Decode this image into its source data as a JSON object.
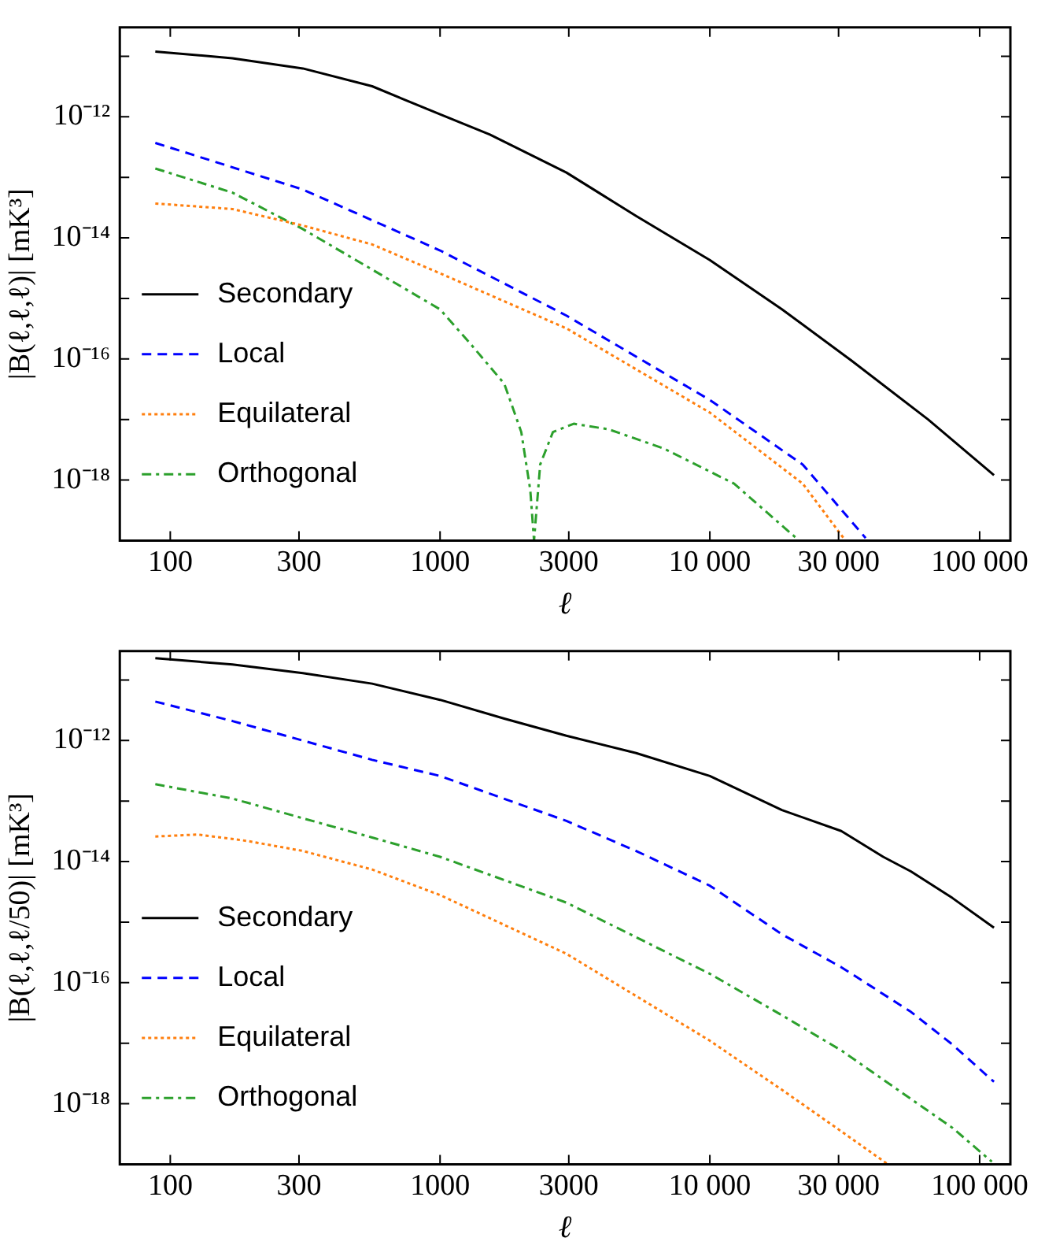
{
  "chart_data": [
    {
      "type": "line",
      "xlabel": "ℓ",
      "ylabel": "|B(ℓ,ℓ,ℓ)| [mK³]",
      "log": "xy",
      "grid": false,
      "legend": "left",
      "marker": "none",
      "xlim": [
        65,
        130000
      ],
      "ylim": [
        1e-19,
        3e-11
      ],
      "xticks": [
        100,
        300,
        1000,
        3000,
        {
          "value": 10000,
          "label": "10 000"
        },
        {
          "value": 30000,
          "label": "30 000"
        },
        {
          "value": 100000,
          "label": "100 000"
        }
      ],
      "yticks": [
        {
          "value": 1e-11,
          "label": null
        },
        {
          "value": 1e-12,
          "label": "10⁻¹²"
        },
        {
          "value": 1e-13,
          "label": null
        },
        {
          "value": 1e-14,
          "label": "10⁻¹⁴"
        },
        {
          "value": 1e-15,
          "label": null
        },
        {
          "value": 1e-16,
          "label": "10⁻¹⁶"
        },
        {
          "value": 1e-17,
          "label": null
        },
        {
          "value": 1e-18,
          "label": "10⁻¹⁸"
        }
      ],
      "series": [
        {
          "name": "Secondary",
          "color": "#000000",
          "line_style": "solid",
          "x": [
            88,
            170,
            310,
            560,
            1000,
            1530,
            2940,
            5330,
            10000,
            18500,
            33600,
            64400,
            113000
          ],
          "values": [
            1.2e-11,
            9.3e-12,
            6.3e-12,
            3.2e-12,
            1.1e-12,
            5.1e-13,
            1.2e-13,
            2.3e-14,
            4.3e-15,
            6.6e-16,
            9.3e-17,
            1e-17,
            1.2e-18
          ]
        },
        {
          "name": "Local",
          "color": "#0000ff",
          "line_style": "dashed",
          "x": [
            88,
            310,
            1000,
            2940,
            10000,
            22100,
            37800
          ],
          "values": [
            3.7e-13,
            6.3e-14,
            6.2e-15,
            5.2e-16,
            2.1e-17,
            1.8e-18,
            1.1e-19
          ]
        },
        {
          "name": "Equilateral",
          "color": "#ff7f0e",
          "line_style": "dotted",
          "x": [
            88,
            170,
            310,
            560,
            1000,
            2940,
            10000,
            22100,
            31300
          ],
          "values": [
            3.7e-14,
            3e-14,
            1.6e-14,
            7.8e-15,
            2.6e-15,
            3.2e-16,
            1.3e-17,
            8.7e-19,
            1.1e-19
          ]
        },
        {
          "name": "Orthogonal",
          "color": "#2ca02c",
          "line_style": "dashdot",
          "x": [
            88,
            170,
            310,
            560,
            1000,
            1280,
            1730,
            2000,
            2160,
            2230,
            2350,
            2620,
            3130,
            4210,
            6760,
            12300,
            20900
          ],
          "values": [
            1.4e-13,
            5.6e-14,
            1.4e-14,
            3e-15,
            6.6e-16,
            1.9e-16,
            3.9e-17,
            6.2e-18,
            6.8e-19,
            1e-19,
            1.8e-18,
            6.2e-18,
            8.5e-18,
            6.9e-18,
            3.3e-18,
            8.7e-19,
            1.1e-19
          ]
        }
      ]
    },
    {
      "type": "line",
      "xlabel": "ℓ",
      "ylabel": "|B(ℓ,ℓ,ℓ/50)| [mK³]",
      "log": "xy",
      "grid": false,
      "legend": "left",
      "marker": "none",
      "xlim": [
        65,
        130000
      ],
      "ylim": [
        1e-19,
        3e-11
      ],
      "xticks": [
        100,
        300,
        1000,
        3000,
        {
          "value": 10000,
          "label": "10 000"
        },
        {
          "value": 30000,
          "label": "30 000"
        },
        {
          "value": 100000,
          "label": "100 000"
        }
      ],
      "yticks": [
        {
          "value": 1e-11,
          "label": null
        },
        {
          "value": 1e-12,
          "label": "10⁻¹²"
        },
        {
          "value": 1e-13,
          "label": null
        },
        {
          "value": 1e-14,
          "label": "10⁻¹⁴"
        },
        {
          "value": 1e-15,
          "label": null
        },
        {
          "value": 1e-16,
          "label": "10⁻¹⁶"
        },
        {
          "value": 1e-17,
          "label": null
        },
        {
          "value": 1e-18,
          "label": "10⁻¹⁸"
        }
      ],
      "series": [
        {
          "name": "Secondary",
          "color": "#000000",
          "line_style": "solid",
          "x": [
            88,
            170,
            310,
            560,
            1000,
            1730,
            2940,
            5330,
            10000,
            18500,
            30700,
            43900,
            55600,
            79300,
            113000
          ],
          "values": [
            2.3e-11,
            1.8e-11,
            1.3e-11,
            8.7e-12,
            4.7e-12,
            2.3e-12,
            1.2e-12,
            6.2e-13,
            2.6e-13,
            7.1e-14,
            3.2e-14,
            1.2e-14,
            6.9e-15,
            2.5e-15,
            8.1e-16
          ]
        },
        {
          "name": "Local",
          "color": "#0000ff",
          "line_style": "dashed",
          "x": [
            88,
            170,
            310,
            560,
            1000,
            2940,
            5330,
            10000,
            18500,
            30700,
            55600,
            79300,
            113000
          ],
          "values": [
            4.4e-12,
            2.1e-12,
            1e-12,
            4.8e-13,
            2.6e-13,
            4.7e-14,
            1.5e-14,
            4e-15,
            6.3e-16,
            1.8e-16,
            3.3e-17,
            9.5e-18,
            2.3e-18
          ]
        },
        {
          "name": "Equilateral",
          "color": "#ff7f0e",
          "line_style": "dotted",
          "x": [
            88,
            127,
            192,
            310,
            560,
            1000,
            2940,
            10000,
            18500,
            30700,
            45700
          ],
          "values": [
            2.6e-14,
            2.8e-14,
            2.2e-14,
            1.5e-14,
            7.4e-15,
            2.8e-15,
            3e-16,
            1.1e-17,
            1.7e-18,
            3.5e-19,
            1e-19
          ]
        },
        {
          "name": "Orthogonal",
          "color": "#2ca02c",
          "line_style": "dashdot",
          "x": [
            88,
            170,
            310,
            560,
            1000,
            2940,
            10000,
            18500,
            30700,
            55600,
            79300,
            111000
          ],
          "values": [
            1.9e-13,
            1.1e-13,
            5.2e-14,
            2.5e-14,
            1.2e-14,
            2.1e-15,
            1.4e-16,
            2.9e-17,
            7.6e-18,
            1.2e-18,
            4e-19,
            1.1e-19
          ]
        }
      ]
    }
  ]
}
